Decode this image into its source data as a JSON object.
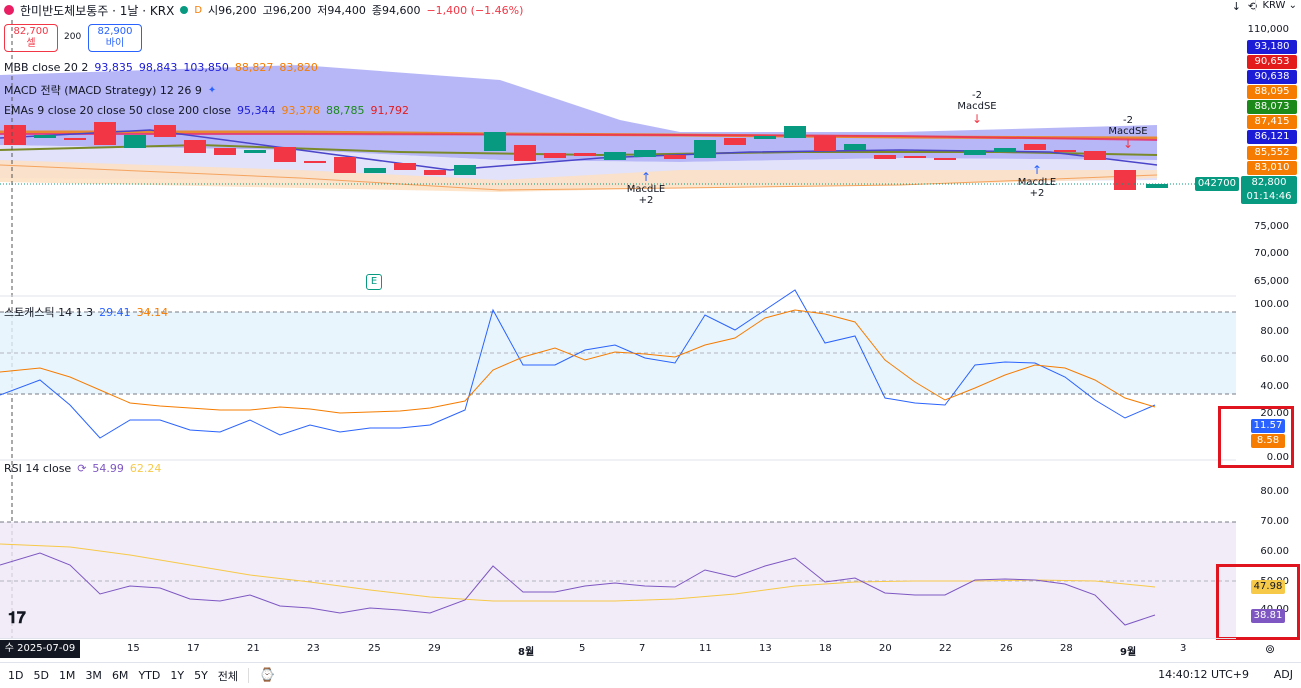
{
  "header": {
    "title": "한미반도체보통주 · 1날 · KRX",
    "badge_d": "D",
    "open": "시96,200",
    "high": "고96,200",
    "low": "저94,400",
    "close": "종94,600",
    "change": "−1,400 (−1.46%)"
  },
  "toolbar_right": {
    "currency": "KRW"
  },
  "trade": {
    "sell_price": "82,700",
    "sell_label": "셀",
    "spread": "200",
    "buy_price": "82,900",
    "buy_label": "바이"
  },
  "indicators": {
    "mbb": {
      "name": "MBB close 20 2",
      "v1": "93,835",
      "v2": "98,843",
      "v3": "103,850",
      "v4": "88,827",
      "v5": "83,820"
    },
    "macd": {
      "name": "MACD 전략 (MACD Strategy) 12 26 9"
    },
    "emas": {
      "name": "EMAs 9 close 20 close 50 close 200 close",
      "v1": "95,344",
      "v2": "93,378",
      "v3": "88,785",
      "v4": "91,792"
    },
    "stoch": {
      "name": "스토캐스틱 14 1 3",
      "k": "29.41",
      "d": "34.14"
    },
    "rsi": {
      "name": "RSI 14 close",
      "v1": "54.99",
      "v2": "62.24"
    }
  },
  "price_axis": {
    "labels": [
      "110,000",
      "75,000",
      "70,000",
      "65,000"
    ],
    "tags": [
      {
        "v": "93,180",
        "color": "#1c1cd6"
      },
      {
        "v": "90,653",
        "color": "#e31b1b"
      },
      {
        "v": "90,638",
        "color": "#1c1cd6"
      },
      {
        "v": "88,095",
        "color": "#f57c00"
      },
      {
        "v": "88,073",
        "color": "#1b8a1b"
      },
      {
        "v": "87,415",
        "color": "#f57c00"
      },
      {
        "v": "86,121",
        "color": "#1c1cd6"
      },
      {
        "v": "85,552",
        "color": "#f57c00"
      },
      {
        "v": "83,010",
        "color": "#f57c00"
      }
    ],
    "last_price": "82,800",
    "countdown": "01:14:46",
    "ticker_code": "042700"
  },
  "stoch_axis": {
    "labels": [
      "100.00",
      "80.00",
      "60.00",
      "40.00",
      "20.00",
      "0.00"
    ],
    "k_tag": "11.57",
    "d_tag": "8.58"
  },
  "rsi_axis": {
    "labels": [
      "80.00",
      "70.00",
      "60.00",
      "50.00",
      "40.00"
    ],
    "tag1": "47.98",
    "tag2": "38.81"
  },
  "signals": [
    {
      "label": "MacdSE",
      "num": "-2"
    },
    {
      "label": "MacdSE",
      "num": "-2"
    },
    {
      "label": "MacdLE",
      "num": "+2"
    },
    {
      "label": "MacdLE",
      "num": "+2"
    }
  ],
  "earnings_marker": "E",
  "x_axis": {
    "current": "수 2025-07-09",
    "ticks": [
      "15",
      "17",
      "21",
      "23",
      "25",
      "29",
      "8월",
      "5",
      "7",
      "11",
      "13",
      "18",
      "20",
      "22",
      "26",
      "28",
      "9월",
      "3"
    ]
  },
  "bottom": {
    "timeframes": [
      "1D",
      "5D",
      "1M",
      "3M",
      "6M",
      "YTD",
      "1Y",
      "5Y",
      "전체"
    ],
    "clock": "14:40:12 UTC+9",
    "adj": "ADJ"
  },
  "colors": {
    "up": "#089981",
    "down": "#f23645",
    "stoch_k": "#2962ff",
    "stoch_d": "#f57c00",
    "rsi": "#7e57c2",
    "rsi_ma": "#f7c948"
  }
}
